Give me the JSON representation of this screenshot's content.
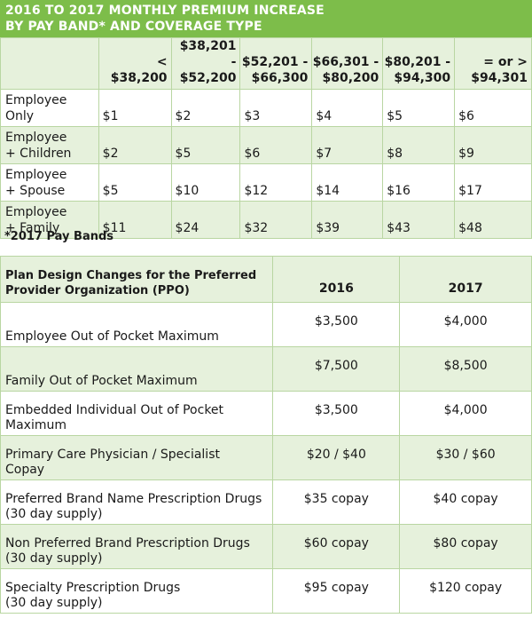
{
  "title": {
    "line1": "2016 TO 2017 MONTHLY PREMIUM INCREASE",
    "line2": "BY PAY BAND* AND COVERAGE TYPE"
  },
  "pay_bands": [
    {
      "line1": "<",
      "line2": "$38,200"
    },
    {
      "line1": "$38,201 -",
      "line2": "$52,200"
    },
    {
      "line1": "$52,201 -",
      "line2": "$66,300"
    },
    {
      "line1": "$66,301 -",
      "line2": "$80,200"
    },
    {
      "line1": "$80,201 -",
      "line2": "$94,300"
    },
    {
      "line1": "= or >",
      "line2": "$94,301"
    }
  ],
  "coverage_rows": [
    {
      "label1": "Employee",
      "label2": "Only",
      "values": [
        "$1",
        "$2",
        "$3",
        "$4",
        "$5",
        "$6"
      ]
    },
    {
      "label1": "Employee",
      "label2": "+ Children",
      "values": [
        "$2",
        "$5",
        "$6",
        "$7",
        "$8",
        "$9"
      ]
    },
    {
      "label1": "Employee",
      "label2": "+ Spouse",
      "values": [
        "$5",
        "$10",
        "$12",
        "$14",
        "$16",
        "$17"
      ]
    },
    {
      "label1": "Employee",
      "label2": "+ Family",
      "values": [
        "$11",
        "$24",
        "$32",
        "$39",
        "$43",
        "$48"
      ]
    }
  ],
  "footnote": "*2017 Pay Bands",
  "plan": {
    "header_line1": "Plan Design Changes for the Preferred",
    "header_line2": "Provider Organization (PPO)",
    "year_2016": "2016",
    "year_2017": "2017",
    "rows": [
      {
        "label1": "",
        "label2": "Employee Out of Pocket Maximum",
        "v2016": "$3,500",
        "v2017": "$4,000"
      },
      {
        "label1": "",
        "label2": "Family Out of Pocket Maximum",
        "v2016": "$7,500",
        "v2017": "$8,500"
      },
      {
        "label1": "Embedded Individual Out of Pocket",
        "label2": "Maximum",
        "v2016": "$3,500",
        "v2017": "$4,000"
      },
      {
        "label1": "Primary Care Physician / Specialist",
        "label2": "Copay",
        "v2016": "$20 / $40",
        "v2017": "$30 / $60"
      },
      {
        "label1": "Preferred Brand Name Prescription Drugs",
        "label2": "(30 day supply)",
        "v2016": "$35 copay",
        "v2017": "$40 copay"
      },
      {
        "label1": "Non Preferred Brand Prescription Drugs",
        "label2": "(30 day supply)",
        "v2016": "$60 copay",
        "v2017": "$80 copay"
      },
      {
        "label1": "Specialty Prescription Drugs",
        "label2": "(30 day supply)",
        "v2016": "$95 copay",
        "v2017": "$120 copay"
      }
    ]
  }
}
